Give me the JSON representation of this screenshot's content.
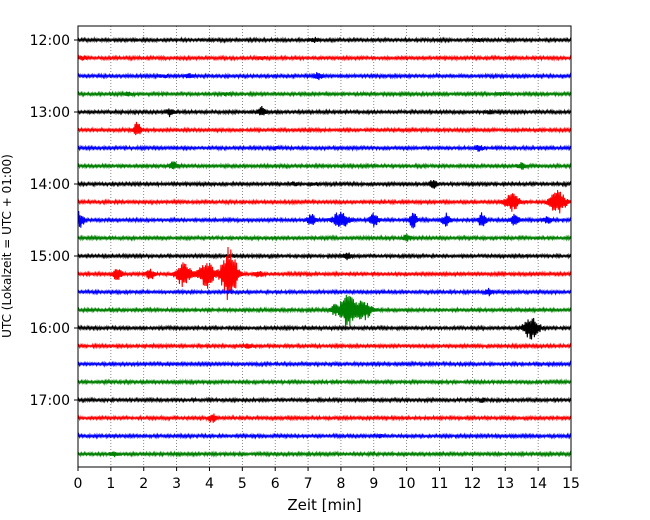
{
  "chart_data": {
    "type": "line",
    "title": "",
    "xlabel": "Zeit  [min]",
    "ylabel": "UTC (Lokalzeit = UTC + 01:00)",
    "xlim": [
      0,
      15
    ],
    "x_ticks": [
      0,
      1,
      2,
      3,
      4,
      5,
      6,
      7,
      8,
      9,
      10,
      11,
      12,
      13,
      14,
      15
    ],
    "x_tick_labels": [
      "0",
      "1",
      "2",
      "3",
      "4",
      "5",
      "6",
      "7",
      "8",
      "9",
      "10",
      "11",
      "12",
      "13",
      "14",
      "15"
    ],
    "y_tick_labels": [
      "12:00",
      "13:00",
      "14:00",
      "15:00",
      "16:00",
      "17:00"
    ],
    "y_tick_times": [
      "12:00",
      "13:00",
      "14:00",
      "15:00",
      "16:00",
      "17:00"
    ],
    "grid": {
      "x": true,
      "style": "dotted"
    },
    "trace_colors_cycle": [
      "#000000",
      "#ff0000",
      "#0000ff",
      "#008000"
    ],
    "traces": [
      {
        "start": "12:00",
        "color": "#000000",
        "events": [
          {
            "t": 7.2,
            "amp": 1.5
          },
          {
            "t": 12.2,
            "amp": 1.2
          },
          {
            "t": 11.0,
            "amp": 1.0
          }
        ]
      },
      {
        "start": "12:15",
        "color": "#ff0000",
        "events": [
          {
            "t": 0.15,
            "amp": 1.6
          },
          {
            "t": 5.6,
            "amp": 1.2
          }
        ]
      },
      {
        "start": "12:30",
        "color": "#0000ff",
        "events": [
          {
            "t": 3.4,
            "amp": 2.0
          },
          {
            "t": 7.3,
            "amp": 3.5
          },
          {
            "t": 2.6,
            "amp": 1.2
          }
        ]
      },
      {
        "start": "12:45",
        "color": "#008000",
        "events": [
          {
            "t": 1.5,
            "amp": 2.0
          },
          {
            "t": 4.5,
            "amp": 1.2
          },
          {
            "t": 12.9,
            "amp": 1.2
          }
        ]
      },
      {
        "start": "13:00",
        "color": "#000000",
        "events": [
          {
            "t": 2.8,
            "amp": 4.0
          },
          {
            "t": 5.6,
            "amp": 5.0
          },
          {
            "t": 12.5,
            "amp": 1.5
          }
        ]
      },
      {
        "start": "13:15",
        "color": "#ff0000",
        "events": [
          {
            "t": 1.8,
            "amp": 7.0
          }
        ]
      },
      {
        "start": "13:30",
        "color": "#0000ff",
        "events": [
          {
            "t": 12.2,
            "amp": 2.5
          },
          {
            "t": 6.0,
            "amp": 1.2
          }
        ]
      },
      {
        "start": "13:45",
        "color": "#008000",
        "events": [
          {
            "t": 2.9,
            "amp": 4.0
          },
          {
            "t": 13.5,
            "amp": 3.0
          }
        ]
      },
      {
        "start": "14:00",
        "color": "#000000",
        "events": [
          {
            "t": 10.8,
            "amp": 4.0
          },
          {
            "t": 6.6,
            "amp": 1.5
          },
          {
            "t": 7.2,
            "amp": 1.5
          }
        ]
      },
      {
        "start": "14:15",
        "color": "#ff0000",
        "events": [
          {
            "t": 13.2,
            "amp": 9.0
          },
          {
            "t": 14.6,
            "amp": 12.0
          }
        ]
      },
      {
        "start": "14:30",
        "color": "#0000ff",
        "events": [
          {
            "t": 0.05,
            "amp": 8.0
          },
          {
            "t": 7.1,
            "amp": 6.0
          },
          {
            "t": 8.0,
            "amp": 9.0
          },
          {
            "t": 9.0,
            "amp": 6.5
          },
          {
            "t": 10.2,
            "amp": 7.5
          },
          {
            "t": 11.2,
            "amp": 6.0
          },
          {
            "t": 12.3,
            "amp": 6.5
          },
          {
            "t": 13.3,
            "amp": 5.0
          },
          {
            "t": 14.3,
            "amp": 4.0
          }
        ]
      },
      {
        "start": "14:45",
        "color": "#008000",
        "events": [
          {
            "t": 10.0,
            "amp": 3.0
          }
        ]
      },
      {
        "start": "15:00",
        "color": "#000000",
        "events": [
          {
            "t": 8.2,
            "amp": 3.0
          },
          {
            "t": 4.6,
            "amp": 1.5
          }
        ]
      },
      {
        "start": "15:15",
        "color": "#ff0000",
        "events": [
          {
            "t": 1.2,
            "amp": 7.0
          },
          {
            "t": 2.2,
            "amp": 5.0
          },
          {
            "t": 3.2,
            "amp": 12.0
          },
          {
            "t": 3.9,
            "amp": 14.0
          },
          {
            "t": 4.6,
            "amp": 30.0
          },
          {
            "t": 5.5,
            "amp": 3.0
          }
        ]
      },
      {
        "start": "15:30",
        "color": "#0000ff",
        "events": [
          {
            "t": 12.5,
            "amp": 3.0
          }
        ]
      },
      {
        "start": "15:45",
        "color": "#008000",
        "events": [
          {
            "t": 8.2,
            "amp": 18.0
          },
          {
            "t": 8.7,
            "amp": 10.0
          },
          {
            "t": 7.8,
            "amp": 4.0
          }
        ]
      },
      {
        "start": "16:00",
        "color": "#000000",
        "events": [
          {
            "t": 13.8,
            "amp": 11.0
          }
        ]
      },
      {
        "start": "16:15",
        "color": "#ff0000",
        "events": [
          {
            "t": 5.2,
            "amp": 2.0
          }
        ]
      },
      {
        "start": "16:30",
        "color": "#0000ff",
        "events": []
      },
      {
        "start": "16:45",
        "color": "#008000",
        "events": []
      },
      {
        "start": "17:00",
        "color": "#000000",
        "events": [
          {
            "t": 12.3,
            "amp": 1.5
          }
        ]
      },
      {
        "start": "17:15",
        "color": "#ff0000",
        "events": [
          {
            "t": 4.1,
            "amp": 4.0
          }
        ]
      },
      {
        "start": "17:30",
        "color": "#0000ff",
        "events": [
          {
            "t": 9.2,
            "amp": 1.2
          }
        ]
      },
      {
        "start": "17:45",
        "color": "#008000",
        "events": [
          {
            "t": 1.1,
            "amp": 1.5
          }
        ]
      }
    ]
  }
}
